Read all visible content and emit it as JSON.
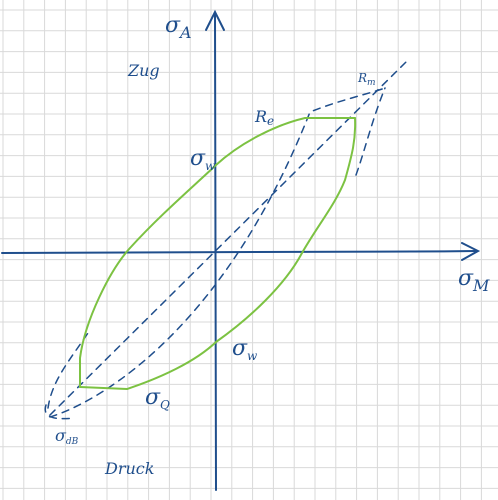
{
  "axes": {
    "x_label": "σ",
    "x_sub": "M",
    "y_label": "σ",
    "y_sub": "A"
  },
  "regions": {
    "tension": "Zug",
    "compression": "Druck"
  },
  "markers": {
    "Rm": {
      "main": "R",
      "sub": "m"
    },
    "Re": {
      "main": "R",
      "sub": "e"
    },
    "sigma_w_upper": {
      "main": "σ",
      "sub": "w"
    },
    "sigma_w_lower": {
      "main": "σ",
      "sub": "w"
    },
    "sigma_Q": {
      "main": "σ",
      "sub": "Q"
    },
    "sigma_dB": {
      "main": "σ",
      "sub": "dB"
    }
  },
  "colors": {
    "grid": "#d9d9d9",
    "axis": "#1f4e8c",
    "ink": "#1f4e8c",
    "green": "#7cc242"
  }
}
